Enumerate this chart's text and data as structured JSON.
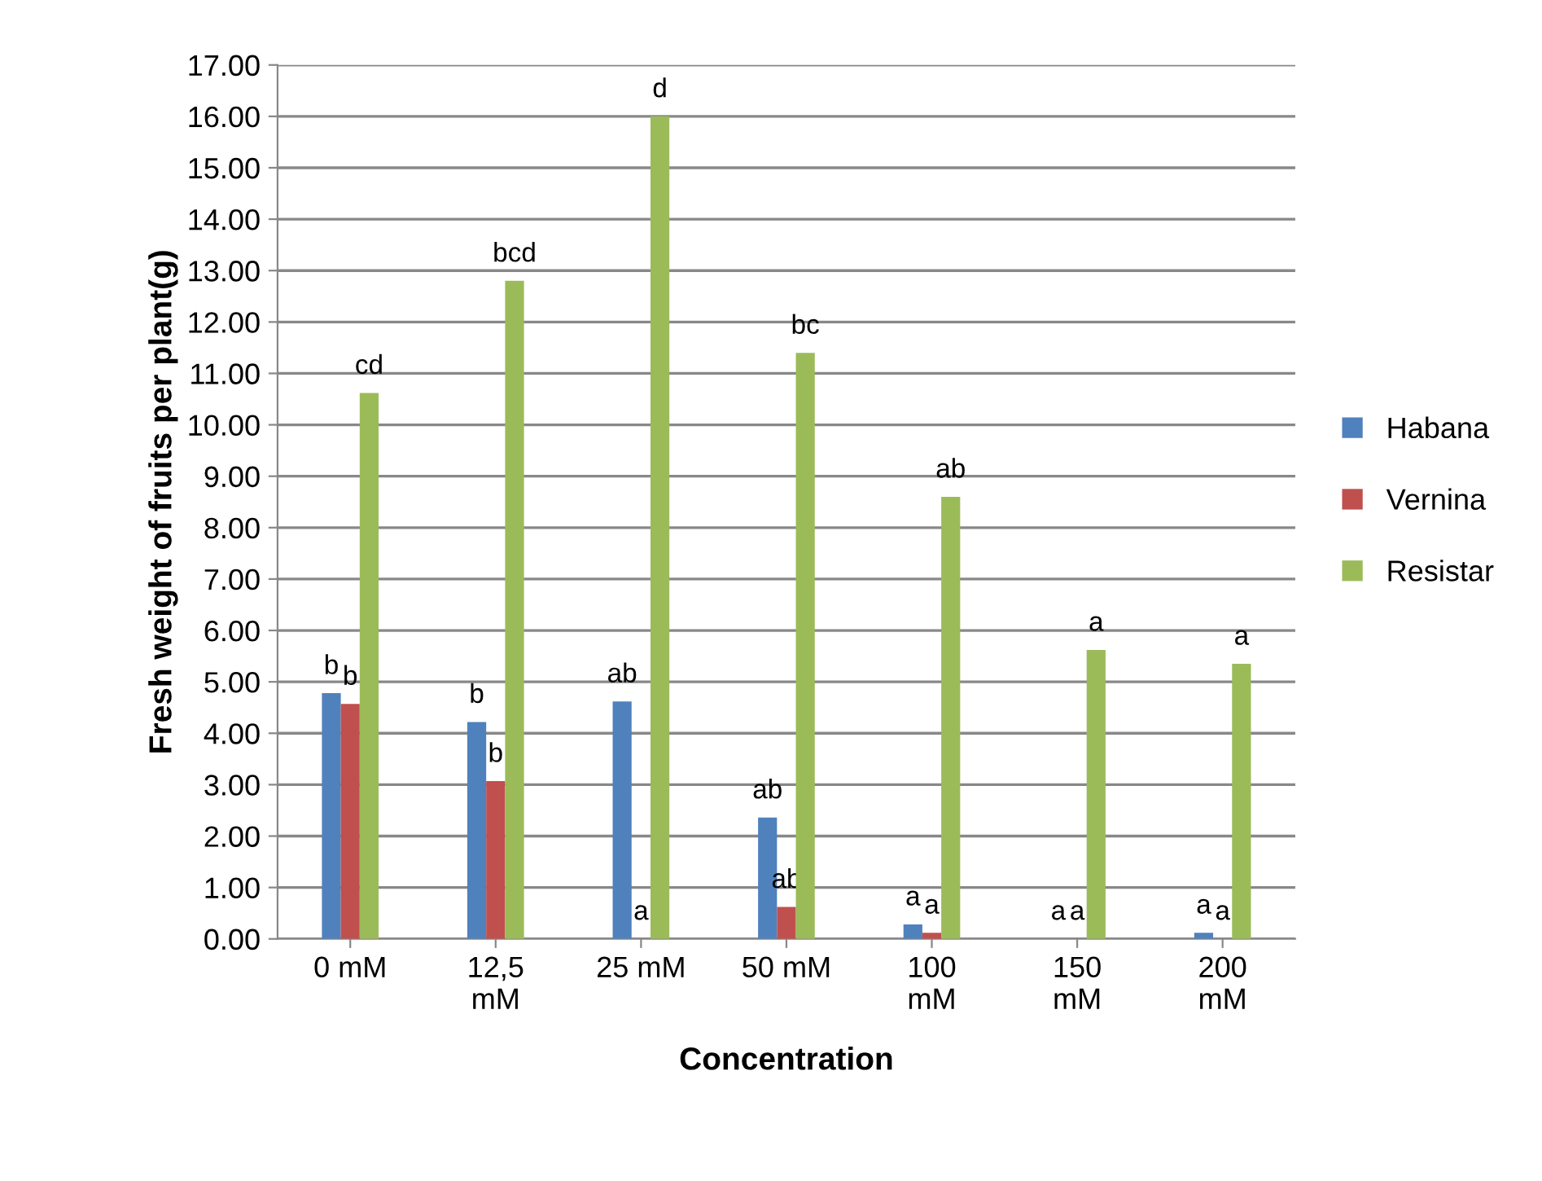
{
  "chart_data": {
    "type": "bar",
    "xlabel": "Concentration",
    "ylabel": "Fresh weight of fruits per plant(g)",
    "categories": [
      "0 mM",
      "12,5 mM",
      "25 mM",
      "50 mM",
      "100 mM",
      "150 mM",
      "200 mM"
    ],
    "series": [
      {
        "name": "Habana",
        "color": "#4f81bd",
        "values": [
          4.78,
          4.22,
          4.62,
          2.36,
          0.28,
          0,
          0.12
        ],
        "value_labels": [
          "b",
          "b",
          "ab",
          "ab",
          "a",
          "a",
          "a"
        ]
      },
      {
        "name": "Vernina",
        "color": "#c0504d",
        "values": [
          4.57,
          3.07,
          0,
          0.62,
          0.12,
          0,
          0
        ],
        "value_labels": [
          "b",
          "b",
          "a",
          "ab",
          "a",
          "a",
          "a"
        ]
      },
      {
        "name": "Resistar",
        "color": "#9bbb59",
        "values": [
          10.62,
          12.8,
          16.0,
          11.4,
          8.6,
          5.62,
          5.35
        ],
        "value_labels": [
          "cd",
          "bcd",
          "d",
          "bc",
          "ab",
          "a",
          "a"
        ]
      }
    ],
    "ylim": [
      0,
      17
    ],
    "yticks": [
      {
        "value": 0,
        "label": "0.00"
      },
      {
        "value": 1,
        "label": "1.00"
      },
      {
        "value": 2,
        "label": "2.00"
      },
      {
        "value": 3,
        "label": "3.00"
      },
      {
        "value": 4,
        "label": "4.00"
      },
      {
        "value": 5,
        "label": "5.00"
      },
      {
        "value": 6,
        "label": "6.00"
      },
      {
        "value": 7,
        "label": "7.00"
      },
      {
        "value": 8,
        "label": "8.00"
      },
      {
        "value": 9,
        "label": "9.00"
      },
      {
        "value": 10,
        "label": "10.00"
      },
      {
        "value": 11,
        "label": "11.00"
      },
      {
        "value": 12,
        "label": "12.00"
      },
      {
        "value": 13,
        "label": "13.00"
      },
      {
        "value": 14,
        "label": "14.00"
      },
      {
        "value": 15,
        "label": "15.00"
      },
      {
        "value": 16,
        "label": "16.00"
      },
      {
        "value": 17,
        "label": "17.00"
      }
    ],
    "grid": "y",
    "legend": "right"
  }
}
